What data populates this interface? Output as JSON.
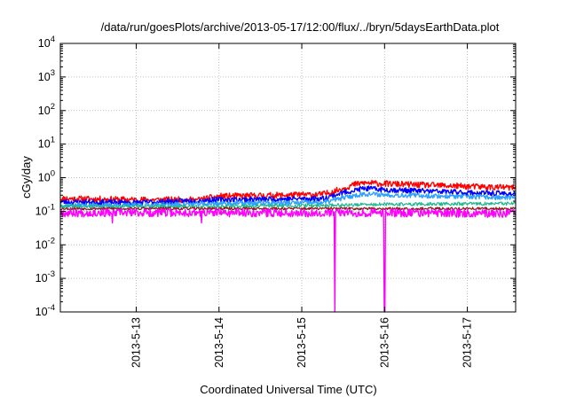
{
  "chart_data": {
    "type": "line",
    "title": "/data/run/goesPlots/archive/2013-05-17/12:00/flux/../bryn/5daysEarthData.plot",
    "xlabel": "Coordinated Universal Time (UTC)",
    "ylabel": "cGy/day",
    "yscale": "log",
    "ylim": [
      0.0001,
      10000
    ],
    "y_ticks": [
      {
        "value": 0.0001,
        "mant": "10",
        "exp": "-4"
      },
      {
        "value": 0.001,
        "mant": "10",
        "exp": "-3"
      },
      {
        "value": 0.01,
        "mant": "10",
        "exp": "-2"
      },
      {
        "value": 0.1,
        "mant": "10",
        "exp": "-1"
      },
      {
        "value": 1,
        "mant": "10",
        "exp": "0"
      },
      {
        "value": 10,
        "mant": "10",
        "exp": "1"
      },
      {
        "value": 100,
        "mant": "10",
        "exp": "2"
      },
      {
        "value": 1000,
        "mant": "10",
        "exp": "3"
      },
      {
        "value": 10000,
        "mant": "10",
        "exp": "4"
      }
    ],
    "xlim": [
      "2013-05-12 02:00",
      "2013-05-17 14:00"
    ],
    "x_ticks": [
      "2013-5-13",
      "2013-5-14",
      "2013-5-15",
      "2013-5-16",
      "2013-5-17"
    ],
    "x_tick_dates": [
      "2013-05-13",
      "2013-05-14",
      "2013-05-15",
      "2013-05-16",
      "2013-05-17"
    ],
    "grid": true,
    "series": [
      {
        "color": "#ff0000",
        "width": 1.4,
        "noise": 0.09,
        "seed": 11,
        "x": [
          "2013-05-12 02:00",
          "2013-05-13 00:00",
          "2013-05-13 18:00",
          "2013-05-14 00:00",
          "2013-05-14 18:00",
          "2013-05-15 06:00",
          "2013-05-15 09:00",
          "2013-05-15 12:00",
          "2013-05-15 15:00",
          "2013-05-15 18:00",
          "2013-05-16 00:00",
          "2013-05-16 12:00",
          "2013-05-17 00:00",
          "2013-05-17 14:00"
        ],
        "y": [
          0.24,
          0.22,
          0.22,
          0.28,
          0.3,
          0.32,
          0.38,
          0.48,
          0.62,
          0.7,
          0.66,
          0.6,
          0.55,
          0.5
        ],
        "dips": []
      },
      {
        "color": "#0000ff",
        "width": 1.4,
        "noise": 0.08,
        "seed": 23,
        "x": [
          "2013-05-12 02:00",
          "2013-05-13 00:00",
          "2013-05-14 00:00",
          "2013-05-15 06:00",
          "2013-05-15 12:00",
          "2013-05-15 18:00",
          "2013-05-16 00:00",
          "2013-05-16 12:00",
          "2013-05-17 00:00",
          "2013-05-17 14:00"
        ],
        "y": [
          0.19,
          0.18,
          0.22,
          0.24,
          0.36,
          0.48,
          0.44,
          0.4,
          0.36,
          0.33
        ],
        "dips": []
      },
      {
        "color": "#2ea0ff",
        "width": 1.4,
        "noise": 0.07,
        "seed": 37,
        "x": [
          "2013-05-12 02:00",
          "2013-05-13 00:00",
          "2013-05-14 00:00",
          "2013-05-15 06:00",
          "2013-05-15 12:00",
          "2013-05-15 18:00",
          "2013-05-16 00:00",
          "2013-05-17 00:00",
          "2013-05-17 14:00"
        ],
        "y": [
          0.15,
          0.15,
          0.17,
          0.18,
          0.25,
          0.33,
          0.31,
          0.27,
          0.25
        ],
        "dips": []
      },
      {
        "color": "#20b890",
        "width": 1.2,
        "noise": 0.05,
        "seed": 41,
        "x": [
          "2013-05-12 02:00",
          "2013-05-14 00:00",
          "2013-05-15 06:00",
          "2013-05-16 00:00",
          "2013-05-17 14:00"
        ],
        "y": [
          0.14,
          0.14,
          0.15,
          0.16,
          0.17
        ],
        "dips": []
      },
      {
        "color": "#8b1a1a",
        "width": 1.2,
        "noise": 0.04,
        "seed": 53,
        "x": [
          "2013-05-12 02:00",
          "2013-05-14 00:00",
          "2013-05-15 06:00",
          "2013-05-16 00:00",
          "2013-05-17 14:00"
        ],
        "y": [
          0.12,
          0.12,
          0.12,
          0.12,
          0.12
        ],
        "dips": []
      },
      {
        "color": "#ff00ff",
        "width": 1.4,
        "noise": 0.12,
        "seed": 67,
        "x": [
          "2013-05-12 02:00",
          "2013-05-14 00:00",
          "2013-05-15 06:00",
          "2013-05-16 00:00",
          "2013-05-17 14:00"
        ],
        "y": [
          0.09,
          0.09,
          0.09,
          0.09,
          0.085
        ],
        "dips": [
          {
            "x": "2013-05-12 17:00",
            "y": 0.045
          },
          {
            "x": "2013-05-13 19:00",
            "y": 0.045
          },
          {
            "x": "2013-05-15 09:30",
            "y": 0.0001
          },
          {
            "x": "2013-05-15 23:50",
            "y": 0.0001
          },
          {
            "x": "2013-05-16 00:10",
            "y": 0.0001
          }
        ]
      }
    ]
  }
}
